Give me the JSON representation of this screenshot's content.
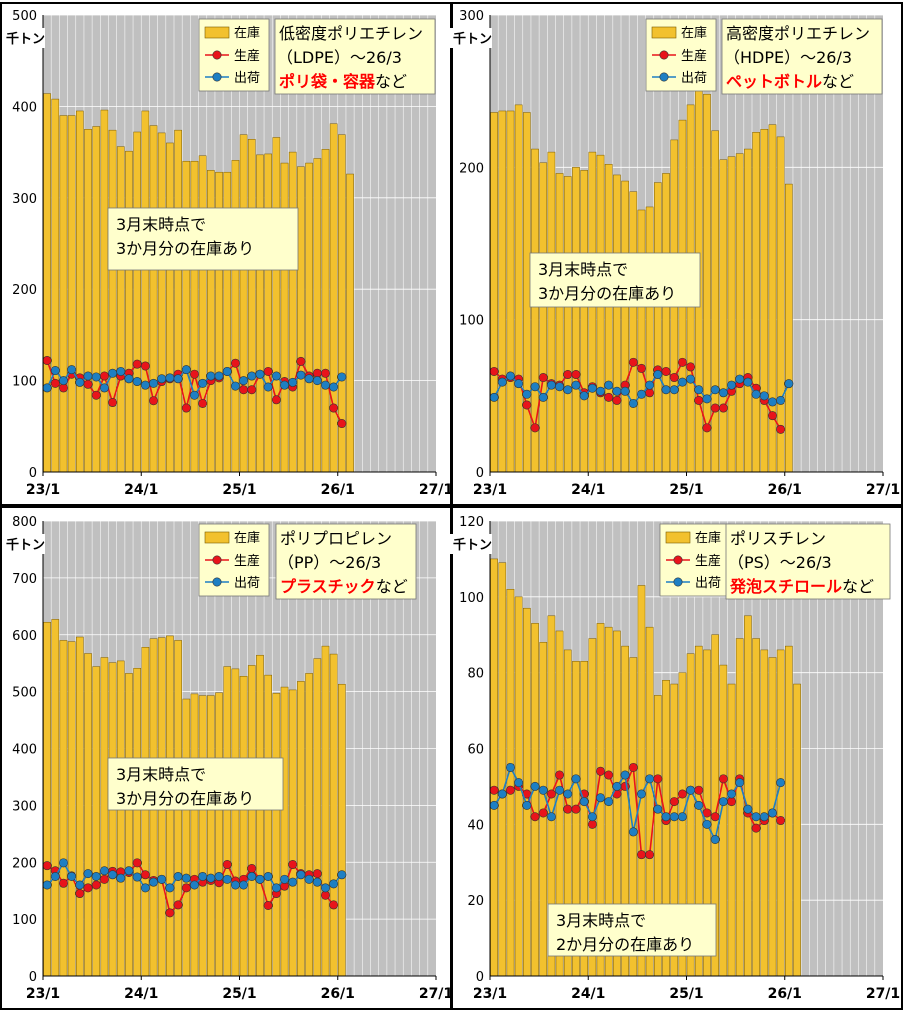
{
  "panels": [
    {
      "unit": "千トン",
      "legend": {
        "stock": "在庫",
        "production": "生産",
        "shipment": "出荷"
      },
      "info": {
        "line1": "低密度ポリエチレン",
        "line2": "（LDPE）～26/3",
        "highlight": "ポリ袋・容器",
        "suffix": "など"
      },
      "note": [
        "3月末時点で",
        "3か月分の在庫あり"
      ]
    },
    {
      "unit": "千トン",
      "legend": {
        "stock": "在庫",
        "production": "生産",
        "shipment": "出荷"
      },
      "info": {
        "line1": "高密度ポリエチレン",
        "line2": "（HDPE）～26/3",
        "highlight": "ペットボトル",
        "suffix": "など"
      },
      "note": [
        "3月末時点で",
        "3か月分の在庫あり"
      ]
    },
    {
      "unit": "千トン",
      "legend": {
        "stock": "在庫",
        "production": "生産",
        "shipment": "出荷"
      },
      "info": {
        "line1": "ポリプロピレン",
        "line2": "（PP）～26/3",
        "highlight": "プラスチック",
        "suffix": "など"
      },
      "note": [
        "3月末時点で",
        "3か月分の在庫あり"
      ]
    },
    {
      "unit": "千トン",
      "legend": {
        "stock": "在庫",
        "production": "生産",
        "shipment": "出荷"
      },
      "info": {
        "line1": "ポリスチレン",
        "line2": "（PS）～26/3",
        "highlight": "発泡スチロール",
        "suffix": "など"
      },
      "note": [
        "3月末時点で",
        "2か月分の在庫あり"
      ]
    }
  ],
  "colors": {
    "bar": "#F2C12E",
    "bar_stroke": "#7a5a00",
    "production": "#E8141B",
    "shipment": "#1E7FC3",
    "plot_bg": "#C0C0C0",
    "info_bg": "#FFFFCC",
    "highlight": "#FF0000",
    "grid": "#ffffff"
  },
  "chart_data": [
    {
      "type": "bar",
      "x_tick_labels": [
        "23/1",
        "24/1",
        "25/1",
        "26/1",
        "27/1"
      ],
      "ylim": [
        0,
        500
      ],
      "y_ticks": [
        0,
        100,
        200,
        300,
        400,
        500
      ],
      "months": [
        "23/1",
        "23/2",
        "23/3",
        "23/4",
        "23/5",
        "23/6",
        "23/7",
        "23/8",
        "23/9",
        "23/10",
        "23/11",
        "23/12",
        "24/1",
        "24/2",
        "24/3",
        "24/4",
        "24/5",
        "24/6",
        "24/7",
        "24/8",
        "24/9",
        "24/10",
        "24/11",
        "24/12",
        "25/1",
        "25/2",
        "25/3",
        "25/4",
        "25/5",
        "25/6",
        "25/7",
        "25/8",
        "25/9",
        "25/10",
        "25/11",
        "25/12",
        "26/1",
        "26/2",
        "26/3"
      ],
      "series": [
        {
          "name": "在庫",
          "type": "bar",
          "values": [
            414,
            408,
            390,
            390,
            395,
            375,
            378,
            396,
            374,
            356,
            351,
            372,
            395,
            379,
            371,
            360,
            374,
            340,
            340,
            346,
            330,
            328,
            328,
            341,
            369,
            364,
            347,
            348,
            366,
            338,
            350,
            334,
            338,
            343,
            353,
            381,
            369,
            326,
            null
          ]
        },
        {
          "name": "生産",
          "type": "line",
          "values": [
            122,
            97,
            92,
            107,
            103,
            96,
            84,
            105,
            76,
            105,
            108,
            118,
            116,
            78,
            99,
            102,
            107,
            70,
            107,
            75,
            100,
            103,
            110,
            119,
            90,
            90,
            107,
            110,
            79,
            99,
            93,
            121,
            105,
            108,
            108,
            70,
            53,
            null,
            null
          ]
        },
        {
          "name": "出荷",
          "type": "line",
          "values": [
            92,
            111,
            100,
            112,
            98,
            105,
            104,
            92,
            108,
            110,
            102,
            99,
            95,
            97,
            102,
            103,
            102,
            112,
            84,
            97,
            105,
            105,
            110,
            94,
            100,
            105,
            107,
            93,
            105,
            95,
            98,
            106,
            102,
            100,
            95,
            93,
            104,
            null,
            null
          ]
        }
      ]
    },
    {
      "type": "bar",
      "x_tick_labels": [
        "23/1",
        "24/1",
        "25/1",
        "26/1",
        "27/1"
      ],
      "ylim": [
        0,
        300
      ],
      "y_ticks": [
        0,
        100,
        200,
        300
      ],
      "months": [
        "23/1",
        "23/2",
        "23/3",
        "23/4",
        "23/5",
        "23/6",
        "23/7",
        "23/8",
        "23/9",
        "23/10",
        "23/11",
        "23/12",
        "24/1",
        "24/2",
        "24/3",
        "24/4",
        "24/5",
        "24/6",
        "24/7",
        "24/8",
        "24/9",
        "24/10",
        "24/11",
        "24/12",
        "25/1",
        "25/2",
        "25/3",
        "25/4",
        "25/5",
        "25/6",
        "25/7",
        "25/8",
        "25/9",
        "25/10",
        "25/11",
        "25/12",
        "26/1",
        "26/2",
        "26/3"
      ],
      "series": [
        {
          "name": "在庫",
          "type": "bar",
          "values": [
            236,
            237,
            237,
            241,
            236,
            212,
            203,
            210,
            196,
            194,
            200,
            198,
            210,
            208,
            202,
            195,
            191,
            184,
            172,
            174,
            190,
            196,
            218,
            231,
            241,
            251,
            248,
            224,
            205,
            207,
            209,
            212,
            223,
            225,
            228,
            220,
            189,
            null,
            null
          ]
        },
        {
          "name": "生産",
          "type": "line",
          "values": [
            66,
            61,
            62,
            61,
            44,
            29,
            62,
            58,
            57,
            64,
            64,
            52,
            56,
            52,
            49,
            47,
            57,
            72,
            68,
            52,
            67,
            66,
            62,
            72,
            69,
            47,
            29,
            42,
            42,
            53,
            58,
            62,
            55,
            47,
            37,
            28,
            null,
            null,
            null
          ]
        },
        {
          "name": "出荷",
          "type": "line",
          "values": [
            49,
            59,
            63,
            58,
            51,
            56,
            49,
            57,
            56,
            54,
            57,
            50,
            55,
            53,
            57,
            53,
            53,
            45,
            51,
            57,
            64,
            54,
            54,
            59,
            61,
            54,
            48,
            54,
            52,
            57,
            61,
            59,
            51,
            50,
            46,
            47,
            58,
            null,
            null
          ]
        }
      ]
    },
    {
      "type": "bar",
      "x_tick_labels": [
        "23/1",
        "24/1",
        "25/1",
        "26/1",
        "27/1"
      ],
      "ylim": [
        0,
        800
      ],
      "y_ticks": [
        0,
        100,
        200,
        300,
        400,
        500,
        600,
        700,
        800
      ],
      "months": [
        "23/1",
        "23/2",
        "23/3",
        "23/4",
        "23/5",
        "23/6",
        "23/7",
        "23/8",
        "23/9",
        "23/10",
        "23/11",
        "23/12",
        "24/1",
        "24/2",
        "24/3",
        "24/4",
        "24/5",
        "24/6",
        "24/7",
        "24/8",
        "24/9",
        "24/10",
        "24/11",
        "24/12",
        "25/1",
        "25/2",
        "25/3",
        "25/4",
        "25/5",
        "25/6",
        "25/7",
        "25/8",
        "25/9",
        "25/10",
        "25/11",
        "25/12",
        "26/1",
        "26/2",
        "26/3"
      ],
      "series": [
        {
          "name": "在庫",
          "type": "bar",
          "values": [
            622,
            627,
            590,
            588,
            596,
            567,
            544,
            560,
            551,
            554,
            532,
            541,
            578,
            593,
            595,
            598,
            590,
            487,
            496,
            493,
            493,
            498,
            544,
            540,
            527,
            546,
            564,
            529,
            497,
            508,
            503,
            518,
            532,
            558,
            580,
            566,
            513,
            null,
            null
          ]
        },
        {
          "name": "生産",
          "type": "line",
          "values": [
            194,
            185,
            163,
            176,
            145,
            155,
            160,
            170,
            184,
            183,
            182,
            199,
            178,
            168,
            170,
            111,
            125,
            155,
            170,
            165,
            168,
            164,
            196,
            167,
            170,
            189,
            170,
            124,
            145,
            158,
            196,
            180,
            178,
            180,
            142,
            125,
            null,
            null,
            null
          ]
        },
        {
          "name": "出荷",
          "type": "line",
          "values": [
            160,
            175,
            199,
            175,
            160,
            180,
            175,
            185,
            178,
            172,
            185,
            174,
            155,
            165,
            170,
            155,
            175,
            172,
            160,
            175,
            172,
            175,
            170,
            160,
            160,
            175,
            170,
            175,
            155,
            170,
            165,
            178,
            170,
            165,
            155,
            162,
            178,
            null,
            null
          ]
        }
      ]
    },
    {
      "type": "bar",
      "x_tick_labels": [
        "23/1",
        "24/1",
        "25/1",
        "26/1",
        "27/1"
      ],
      "ylim": [
        0,
        120
      ],
      "y_ticks": [
        0,
        20,
        40,
        60,
        80,
        100,
        120
      ],
      "months": [
        "23/1",
        "23/2",
        "23/3",
        "23/4",
        "23/5",
        "23/6",
        "23/7",
        "23/8",
        "23/9",
        "23/10",
        "23/11",
        "23/12",
        "24/1",
        "24/2",
        "24/3",
        "24/4",
        "24/5",
        "24/6",
        "24/7",
        "24/8",
        "24/9",
        "24/10",
        "24/11",
        "24/12",
        "25/1",
        "25/2",
        "25/3",
        "25/4",
        "25/5",
        "25/6",
        "25/7",
        "25/8",
        "25/9",
        "25/10",
        "25/11",
        "25/12",
        "26/1",
        "26/2",
        "26/3"
      ],
      "series": [
        {
          "name": "在庫",
          "type": "bar",
          "values": [
            110,
            109,
            102,
            100,
            97,
            93,
            88,
            95,
            91,
            86,
            83,
            83,
            89,
            93,
            92,
            91,
            87,
            84,
            103,
            92,
            74,
            78,
            77,
            80,
            85,
            87,
            86,
            90,
            82,
            77,
            89,
            95,
            89,
            86,
            84,
            86,
            87,
            77,
            null
          ]
        },
        {
          "name": "生産",
          "type": "line",
          "values": [
            49,
            48,
            49,
            50,
            48,
            42,
            43,
            48,
            53,
            44,
            44,
            48,
            40,
            54,
            53,
            48,
            50,
            55,
            32,
            32,
            52,
            41,
            46,
            48,
            49,
            49,
            43,
            42,
            52,
            46,
            52,
            43,
            39,
            41,
            43,
            41,
            null,
            null,
            null
          ]
        },
        {
          "name": "出荷",
          "type": "line",
          "values": [
            45,
            48,
            55,
            51,
            45,
            50,
            49,
            42,
            49,
            48,
            52,
            46,
            42,
            47,
            46,
            50,
            53,
            38,
            48,
            52,
            44,
            42,
            42,
            42,
            49,
            45,
            40,
            36,
            46,
            48,
            51,
            44,
            42,
            42,
            43,
            51,
            null,
            null,
            null
          ]
        }
      ]
    }
  ]
}
